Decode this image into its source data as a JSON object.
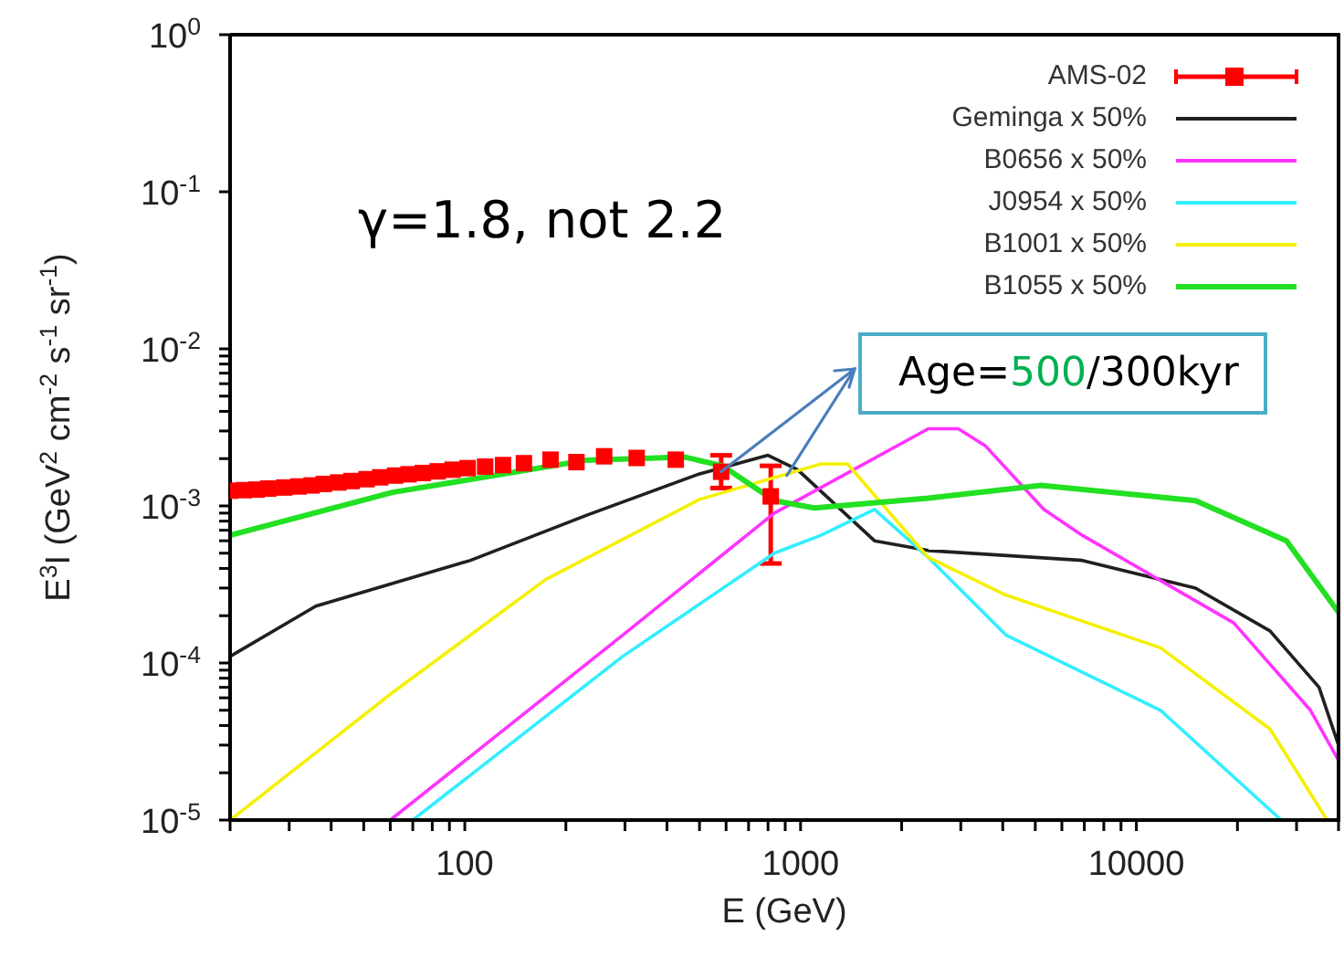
{
  "chart_data": {
    "type": "line",
    "xlabel": "E (GeV)",
    "ylabel": "E$^{3}$I (GeV$^{2}$ cm$^{-2}$ s$^{-1}$ sr$^{-1}$)",
    "log": "xy",
    "xlim": [
      20,
      40000
    ],
    "ylim": [
      1e-05,
      1
    ],
    "xticks": [
      {
        "value": 20,
        "label": null
      },
      {
        "value": 30,
        "label": null
      },
      {
        "value": 40,
        "label": null
      },
      {
        "value": 50,
        "label": null
      },
      {
        "value": 60,
        "label": null
      },
      {
        "value": 70,
        "label": null
      },
      {
        "value": 80,
        "label": null
      },
      {
        "value": 90,
        "label": null
      },
      100,
      {
        "value": 200,
        "label": null
      },
      {
        "value": 300,
        "label": null
      },
      {
        "value": 400,
        "label": null
      },
      {
        "value": 500,
        "label": null
      },
      {
        "value": 600,
        "label": null
      },
      {
        "value": 700,
        "label": null
      },
      {
        "value": 800,
        "label": null
      },
      {
        "value": 900,
        "label": null
      },
      1000,
      {
        "value": 2000,
        "label": null
      },
      {
        "value": 3000,
        "label": null
      },
      {
        "value": 4000,
        "label": null
      },
      {
        "value": 5000,
        "label": null
      },
      {
        "value": 6000,
        "label": null
      },
      {
        "value": 7000,
        "label": null
      },
      {
        "value": 8000,
        "label": null
      },
      {
        "value": 9000,
        "label": null
      },
      10000,
      {
        "value": 20000,
        "label": null
      },
      {
        "value": 30000,
        "label": null
      },
      {
        "value": 40000,
        "label": null
      }
    ],
    "yticks": [
      {
        "value": 1e-05,
        "label": "10$^{-5}$"
      },
      {
        "value": 2e-05,
        "label": null
      },
      {
        "value": 3e-05,
        "label": null
      },
      {
        "value": 4e-05,
        "label": null
      },
      {
        "value": 5e-05,
        "label": null
      },
      {
        "value": 6e-05,
        "label": null
      },
      {
        "value": 7e-05,
        "label": null
      },
      {
        "value": 8e-05,
        "label": null
      },
      {
        "value": 9e-05,
        "label": null
      },
      {
        "value": 0.0001,
        "label": "10$^{-4}$"
      },
      {
        "value": 0.0002,
        "label": null
      },
      {
        "value": 0.0003,
        "label": null
      },
      {
        "value": 0.0004,
        "label": null
      },
      {
        "value": 0.0005,
        "label": null
      },
      {
        "value": 0.0006,
        "label": null
      },
      {
        "value": 0.0007,
        "label": null
      },
      {
        "value": 0.0008,
        "label": null
      },
      {
        "value": 0.0009,
        "label": null
      },
      {
        "value": 0.001,
        "label": "10$^{-3}$"
      },
      {
        "value": 0.002,
        "label": null
      },
      {
        "value": 0.003,
        "label": null
      },
      {
        "value": 0.004,
        "label": null
      },
      {
        "value": 0.005,
        "label": null
      },
      {
        "value": 0.006,
        "label": null
      },
      {
        "value": 0.007,
        "label": null
      },
      {
        "value": 0.008,
        "label": null
      },
      {
        "value": 0.009,
        "label": null
      },
      {
        "value": 0.01,
        "label": "10$^{-2}$"
      },
      {
        "value": 0.1,
        "label": "10$^{-1}$"
      },
      {
        "value": 1,
        "label": "10$^{0}$"
      }
    ],
    "legend": "top right",
    "annotations": [
      "γ=1.8, not 2.2",
      {
        "text": "Age=500/300kyr",
        "x": 580,
        "y": 0.00165
      }
    ],
    "series": [
      {
        "name": "AMS-02",
        "type": "scatter",
        "marker": "square",
        "color": "#ff0000",
        "x": [
          20,
          22,
          24,
          26,
          29,
          32,
          35,
          38,
          42,
          46,
          51,
          56,
          62,
          68,
          75,
          83,
          92,
          102,
          115,
          130,
          150,
          180,
          215,
          260,
          325,
          425,
          580,
          815
        ],
        "values": [
          0.00125,
          0.00126,
          0.00127,
          0.00129,
          0.00131,
          0.00133,
          0.00135,
          0.00138,
          0.00141,
          0.00144,
          0.00148,
          0.00152,
          0.00156,
          0.00159,
          0.00162,
          0.00166,
          0.0017,
          0.00174,
          0.00178,
          0.00182,
          0.00187,
          0.00197,
          0.0019,
          0.00207,
          0.00202,
          0.00197,
          0.00165,
          0.00115
        ],
        "errors": [
          null,
          null,
          null,
          null,
          null,
          null,
          null,
          null,
          null,
          null,
          null,
          null,
          null,
          null,
          null,
          null,
          null,
          null,
          null,
          null,
          null,
          null,
          null,
          null,
          null,
          null,
          [
            0.0013,
            0.0021
          ],
          [
            0.00043,
            0.0018
          ]
        ]
      },
      {
        "name": "Geminga x 50%",
        "color": "#202020",
        "x": [
          20,
          36,
          104,
          230,
          500,
          800,
          980,
          1660,
          2400,
          6900,
          15000,
          25000,
          35000,
          40000
        ],
        "values": [
          0.00011,
          0.00023,
          0.00045,
          0.00087,
          0.0016,
          0.0021,
          0.0017,
          0.0006,
          0.00052,
          0.00045,
          0.0003,
          0.00016,
          7e-05,
          3e-05
        ]
      },
      {
        "name": "B0656 x 50%",
        "color": "#ff33ff",
        "x": [
          60,
          295,
          835,
          2400,
          2950,
          3560,
          5300,
          6900,
          19500,
          33000,
          40000
        ],
        "values": [
          1e-05,
          0.00015,
          0.0009,
          0.0031,
          0.0031,
          0.0024,
          0.00095,
          0.00065,
          0.00018,
          5e-05,
          2.4e-05
        ]
      },
      {
        "name": "J0954 x 50%",
        "color": "#33eeff",
        "x": [
          70,
          295,
          835,
          1150,
          1660,
          2400,
          3500,
          4100,
          11800,
          27000
        ],
        "values": [
          1e-05,
          0.00011,
          0.0005,
          0.00065,
          0.00095,
          0.00047,
          0.00021,
          0.00015,
          5e-05,
          1e-05
        ]
      },
      {
        "name": "B1001 x 50%",
        "color": "#f5f000",
        "x": [
          20,
          61,
          174,
          500,
          1150,
          1380,
          2400,
          4100,
          11800,
          25000,
          37000
        ],
        "values": [
          1e-05,
          6.5e-05,
          0.00034,
          0.0011,
          0.00185,
          0.00185,
          0.00047,
          0.00027,
          0.000125,
          3.8e-05,
          1e-05
        ]
      },
      {
        "name": "B1055 x 50%",
        "color": "#22e022",
        "x": [
          20,
          61,
          228,
          450,
          585,
          835,
          1100,
          2400,
          5200,
          15000,
          28000,
          40000
        ],
        "values": [
          0.00065,
          0.00122,
          0.00195,
          0.00205,
          0.0018,
          0.00108,
          0.00097,
          0.00112,
          0.00135,
          0.00108,
          0.0006,
          0.00021
        ]
      }
    ]
  }
}
